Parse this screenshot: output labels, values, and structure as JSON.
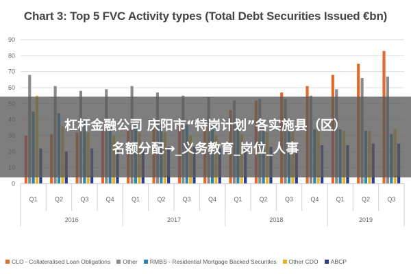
{
  "chart_data": {
    "type": "bar",
    "title": "Chart 3: Top 5 FVC Activity types (Total Debt Securities Issued €bn)",
    "categories": [
      "Q1",
      "Q2",
      "Q3",
      "Q4",
      "Q1",
      "Q2",
      "Q3",
      "Q4",
      "Q1",
      "Q2",
      "Q3",
      "Q4",
      "Q1",
      "Q2",
      "Q3"
    ],
    "years": [
      {
        "label": "2016",
        "count": 4
      },
      {
        "label": "2017",
        "count": 4
      },
      {
        "label": "2018",
        "count": 4
      },
      {
        "label": "2019",
        "count": 3
      }
    ],
    "ylim": [
      0,
      90
    ],
    "yticks": [
      0,
      10,
      20,
      30,
      40,
      50,
      60,
      70,
      80,
      90
    ],
    "grid": true,
    "legend_position": "bottom",
    "series": [
      {
        "name": "CLO - Collateralised Loan Obligations",
        "color": "#e26b2b",
        "values": [
          30,
          31,
          32,
          34,
          34,
          35,
          36,
          40,
          46,
          52,
          57,
          61,
          68,
          75,
          83
        ]
      },
      {
        "name": "Other",
        "color": "#8c8c8c",
        "values": [
          68,
          61,
          58,
          59,
          61,
          57,
          55,
          54,
          52,
          53,
          53,
          55,
          59,
          66,
          67
        ]
      },
      {
        "name": "RMBS - Residential Mortgage Backed Securities",
        "color": "#2e86a8",
        "values": [
          45,
          44,
          40,
          38,
          38,
          37,
          37,
          36,
          36,
          35,
          35,
          34,
          34,
          33,
          31
        ]
      },
      {
        "name": "Other CDO",
        "color": "#e8b52a",
        "values": [
          55,
          36,
          32,
          30,
          32,
          32,
          30,
          30,
          31,
          32,
          33,
          33,
          33,
          33,
          34
        ]
      },
      {
        "name": "ABCP",
        "color": "#2a3d8f",
        "values": [
          22,
          20,
          22,
          21,
          22,
          23,
          23,
          22,
          22,
          23,
          23,
          24,
          24,
          25,
          25
        ]
      }
    ]
  },
  "overlay": {
    "line1": "杠杆金融公司 庆阳市“特岗计划”各实施县（区）",
    "line2": "名额分配→_义务教育_岗位_人事"
  }
}
